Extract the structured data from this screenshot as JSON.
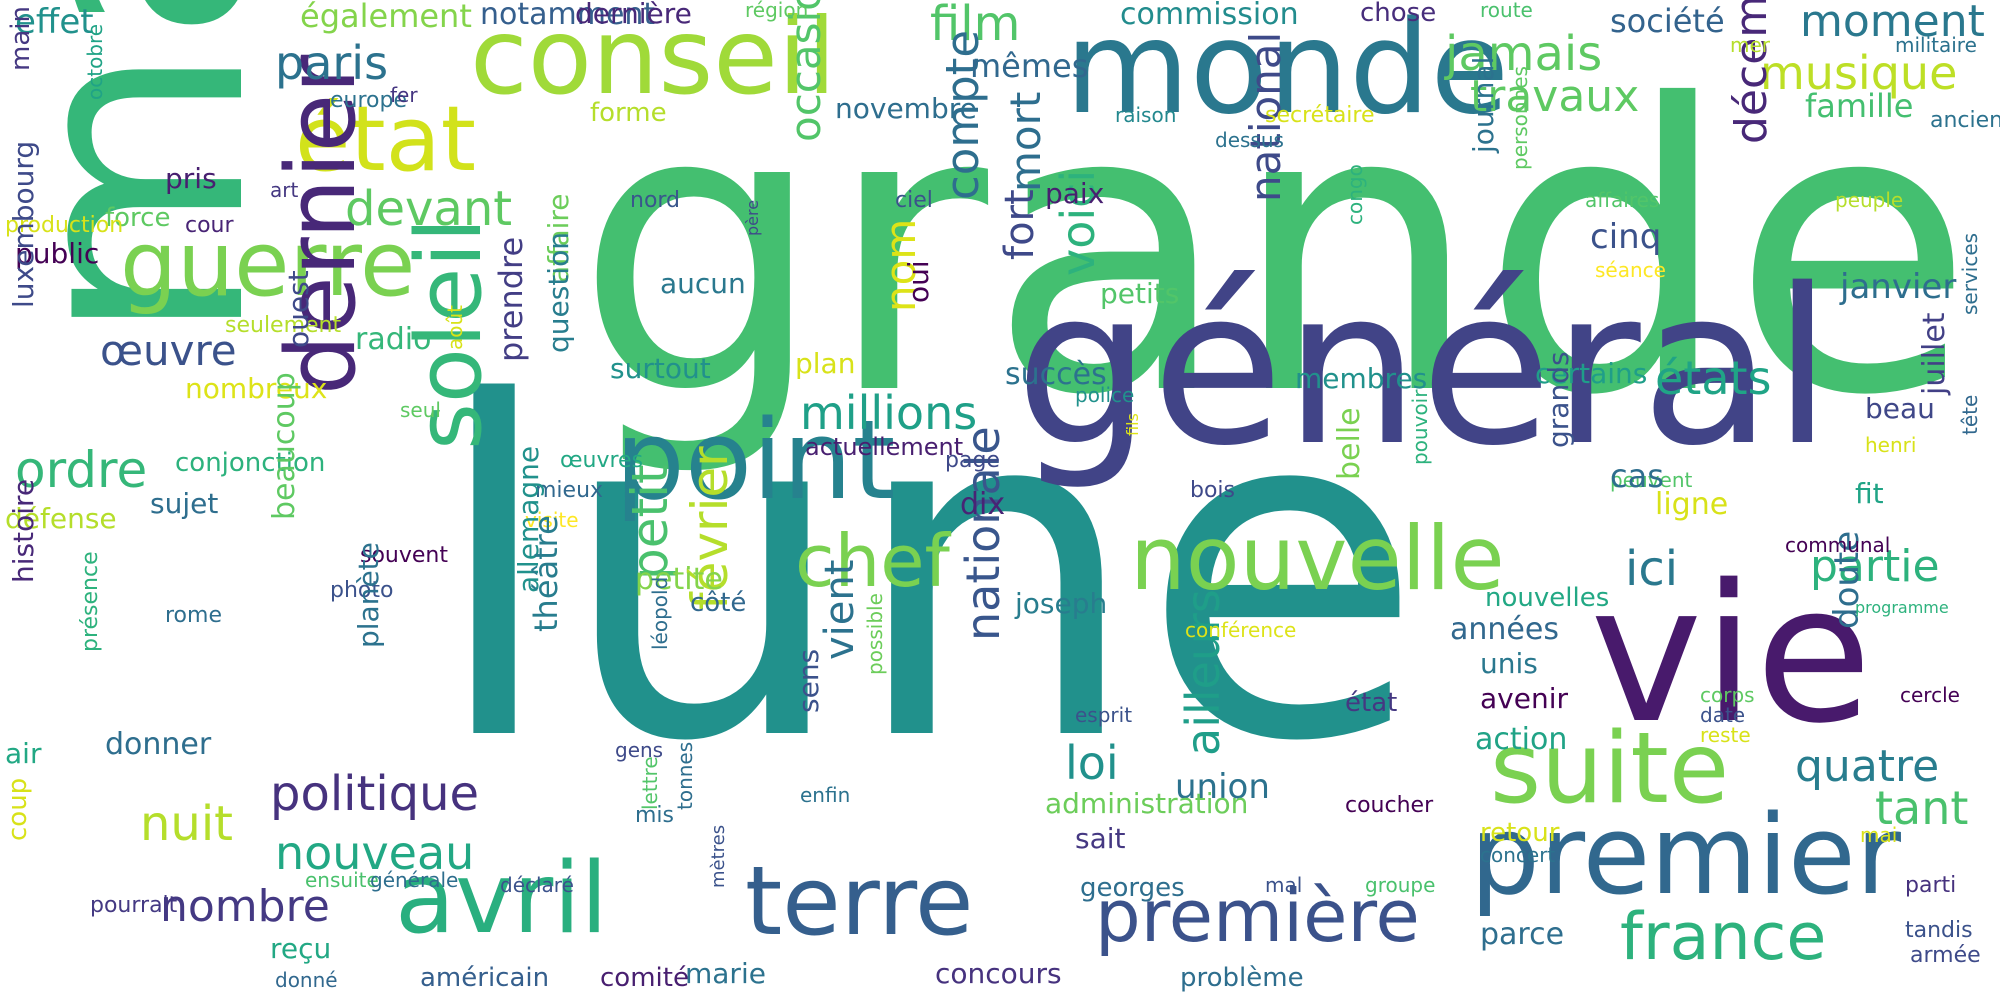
{
  "colors": {
    "background": "#ffffff",
    "palette": [
      "#440154",
      "#3b528b",
      "#21918c",
      "#35b779",
      "#90d743",
      "#fde725"
    ]
  },
  "words": [
    {
      "text": "grande",
      "color": "#44bf70"
    },
    {
      "text": "lune",
      "color": "#21918c"
    },
    {
      "text": "mars",
      "color": "#35b779"
    },
    {
      "text": "général",
      "color": "#414487"
    },
    {
      "text": "vie",
      "color": "#481a6c"
    },
    {
      "text": "monde",
      "color": "#2a788e"
    },
    {
      "text": "conseil",
      "color": "#a0da39"
    },
    {
      "text": "premier",
      "color": "#31688e"
    },
    {
      "text": "point",
      "color": "#26828e"
    },
    {
      "text": "suite",
      "color": "#7ad151"
    },
    {
      "text": "terre",
      "color": "#355f8d"
    },
    {
      "text": "nouvelle",
      "color": "#7ad151"
    },
    {
      "text": "guerre",
      "color": "#7ad151"
    },
    {
      "text": "état",
      "color": "#d2e21b"
    },
    {
      "text": "avril",
      "color": "#29af7f"
    },
    {
      "text": "dernier",
      "color": "#482878"
    },
    {
      "text": "soleil",
      "color": "#35b779"
    },
    {
      "text": "france",
      "color": "#2db27d"
    },
    {
      "text": "première",
      "color": "#3b528b"
    },
    {
      "text": "chef",
      "color": "#7ad151"
    },
    {
      "text": "politique",
      "color": "#46327e"
    },
    {
      "text": "ordre",
      "color": "#35b779"
    },
    {
      "text": "nouveau",
      "color": "#22a884"
    },
    {
      "text": "paris",
      "color": "#2c728e"
    },
    {
      "text": "devant",
      "color": "#5ec962"
    },
    {
      "text": "millions",
      "color": "#1fa088"
    },
    {
      "text": "jamais",
      "color": "#5ec962"
    },
    {
      "text": "travaux",
      "color": "#5ec962"
    },
    {
      "text": "film",
      "color": "#52c569"
    },
    {
      "text": "moment",
      "color": "#2a788e"
    },
    {
      "text": "musique",
      "color": "#bddf26"
    },
    {
      "text": "société",
      "color": "#33638d"
    },
    {
      "text": "famille",
      "color": "#44bf70"
    },
    {
      "text": "décembre",
      "color": "#482878"
    },
    {
      "text": "février",
      "color": "#b5de2b"
    },
    {
      "text": "petit",
      "color": "#4ac16d"
    },
    {
      "text": "occasion",
      "color": "#52c569"
    },
    {
      "text": "compte",
      "color": "#2e6e8e"
    },
    {
      "text": "mort",
      "color": "#2e6e8e"
    },
    {
      "text": "national",
      "color": "#3e4a89"
    },
    {
      "text": "nationale",
      "color": "#39568c"
    },
    {
      "text": "voici",
      "color": "#2db27d"
    },
    {
      "text": "états",
      "color": "#20a486"
    },
    {
      "text": "ailleurs",
      "color": "#1f9e89"
    },
    {
      "text": "nombre",
      "color": "#443983"
    },
    {
      "text": "œuvre",
      "color": "#3b528b"
    },
    {
      "text": "nuit",
      "color": "#b5de2b"
    },
    {
      "text": "ici",
      "color": "#2a788e"
    },
    {
      "text": "partie",
      "color": "#2db27d"
    },
    {
      "text": "quatre",
      "color": "#287d8e"
    },
    {
      "text": "tant",
      "color": "#4ac16d"
    },
    {
      "text": "loi",
      "color": "#21918c"
    },
    {
      "text": "union",
      "color": "#2c728e"
    },
    {
      "text": "vient",
      "color": "#2c728e"
    },
    {
      "text": "nom",
      "color": "#dde318"
    },
    {
      "text": "fort",
      "color": "#3e4989"
    },
    {
      "text": "cinq",
      "color": "#3b528b"
    },
    {
      "text": "janvier",
      "color": "#2e6e8e"
    },
    {
      "text": "juillet",
      "color": "#424086"
    },
    {
      "text": "beau",
      "color": "#3f4788"
    },
    {
      "text": "doute",
      "color": "#2e6e8e"
    },
    {
      "text": "effet",
      "color": "#21918c"
    },
    {
      "text": "également",
      "color": "#84d44b"
    },
    {
      "text": "notamment",
      "color": "#355f8d"
    },
    {
      "text": "dernière",
      "color": "#482878"
    },
    {
      "text": "région",
      "color": "#5ec962"
    },
    {
      "text": "commission",
      "color": "#228c8d"
    },
    {
      "text": "chose",
      "color": "#472d7b"
    },
    {
      "text": "route",
      "color": "#4ac16d"
    },
    {
      "text": "mer",
      "color": "#b5de2b"
    },
    {
      "text": "militaire",
      "color": "#2c728e"
    },
    {
      "text": "ancien",
      "color": "#2c728e"
    },
    {
      "text": "main",
      "color": "#453882"
    },
    {
      "text": "octobre",
      "color": "#20a386"
    },
    {
      "text": "europe",
      "color": "#2c728e"
    },
    {
      "text": "fer",
      "color": "#453581"
    },
    {
      "text": "forme",
      "color": "#b5de2b"
    },
    {
      "text": "novembre",
      "color": "#2e6e8e"
    },
    {
      "text": "raison",
      "color": "#23888e"
    },
    {
      "text": "secrétaire",
      "color": "#d8e219"
    },
    {
      "text": "dessus",
      "color": "#2c728e"
    },
    {
      "text": "mêmes",
      "color": "#31688e"
    },
    {
      "text": "pris",
      "color": "#481f70"
    },
    {
      "text": "art",
      "color": "#453882"
    },
    {
      "text": "force",
      "color": "#5ec962"
    },
    {
      "text": "cour",
      "color": "#482475"
    },
    {
      "text": "production",
      "color": "#d8e219"
    },
    {
      "text": "public",
      "color": "#440154"
    },
    {
      "text": "nord",
      "color": "#39568c"
    },
    {
      "text": "ciel",
      "color": "#3b528b"
    },
    {
      "text": "père",
      "color": "#3e4a89"
    },
    {
      "text": "paix",
      "color": "#481f70"
    },
    {
      "text": "journal",
      "color": "#2c728e"
    },
    {
      "text": "personnes",
      "color": "#5ec962"
    },
    {
      "text": "affaires",
      "color": "#52c569"
    },
    {
      "text": "peuple",
      "color": "#b5de2b"
    },
    {
      "text": "séance",
      "color": "#fde725"
    },
    {
      "text": "congo",
      "color": "#2db27d"
    },
    {
      "text": "luxembourg",
      "color": "#3e4a89"
    },
    {
      "text": "seulement",
      "color": "#b5de2b"
    },
    {
      "text": "radio",
      "color": "#35b779"
    },
    {
      "text": "août",
      "color": "#d8e219"
    },
    {
      "text": "aucun",
      "color": "#2a788e"
    },
    {
      "text": "petits",
      "color": "#52c569"
    },
    {
      "text": "oui",
      "color": "#440154"
    },
    {
      "text": "surtout",
      "color": "#21918c"
    },
    {
      "text": "plan",
      "color": "#d8e219"
    },
    {
      "text": "succès",
      "color": "#2c728e"
    },
    {
      "text": "membres",
      "color": "#21918c"
    },
    {
      "text": "certains",
      "color": "#1f9e89"
    },
    {
      "text": "police",
      "color": "#21918c"
    },
    {
      "text": "affaire",
      "color": "#6ccd5a"
    },
    {
      "text": "nombreux",
      "color": "#dde318"
    },
    {
      "text": "seul",
      "color": "#5ec962"
    },
    {
      "text": "ouest",
      "color": "#3e4989"
    },
    {
      "text": "prendre",
      "color": "#433e85"
    },
    {
      "text": "question",
      "color": "#287d8e"
    },
    {
      "text": "services",
      "color": "#2e6e8e"
    },
    {
      "text": "conjonction",
      "color": "#2db27d"
    },
    {
      "text": "sujet",
      "color": "#2e6e8e"
    },
    {
      "text": "œuvres",
      "color": "#22a884"
    },
    {
      "text": "actuellement",
      "color": "#481f70"
    },
    {
      "text": "fils",
      "color": "#dde318"
    },
    {
      "text": "page",
      "color": "#3e4989"
    },
    {
      "text": "bois",
      "color": "#3e4989"
    },
    {
      "text": "pouvoir",
      "color": "#2db27d"
    },
    {
      "text": "peuvent",
      "color": "#52c569"
    },
    {
      "text": "henri",
      "color": "#d8e219"
    },
    {
      "text": "tête",
      "color": "#31688e"
    },
    {
      "text": "fit",
      "color": "#20a486"
    },
    {
      "text": "cas",
      "color": "#2e6e8e"
    },
    {
      "text": "défense",
      "color": "#b5de2b"
    },
    {
      "text": "mieux",
      "color": "#31688e"
    },
    {
      "text": "visite",
      "color": "#fde725"
    },
    {
      "text": "dix",
      "color": "#482475"
    },
    {
      "text": "grands",
      "color": "#3b528b"
    },
    {
      "text": "ligne",
      "color": "#d8e219"
    },
    {
      "text": "belle",
      "color": "#7ad151"
    },
    {
      "text": "souvent",
      "color": "#440154"
    },
    {
      "text": "communal",
      "color": "#440154"
    },
    {
      "text": "histoire",
      "color": "#482878"
    },
    {
      "text": "photo",
      "color": "#3b528b"
    },
    {
      "text": "beaucoup",
      "color": "#5ec962"
    },
    {
      "text": "petite",
      "color": "#84d44b"
    },
    {
      "text": "allemagne",
      "color": "#21918c"
    },
    {
      "text": "théâtre",
      "color": "#287d8e"
    },
    {
      "text": "planète",
      "color": "#2c728e"
    },
    {
      "text": "côté",
      "color": "#31688e"
    },
    {
      "text": "joseph",
      "color": "#287d8e"
    },
    {
      "text": "années",
      "color": "#31688e"
    },
    {
      "text": "nouvelles",
      "color": "#22a884"
    },
    {
      "text": "programme",
      "color": "#2db27d"
    },
    {
      "text": "rome",
      "color": "#2e6e8e"
    },
    {
      "text": "présence",
      "color": "#2db27d"
    },
    {
      "text": "léopold",
      "color": "#2e6e8e"
    },
    {
      "text": "possible",
      "color": "#6ccd5a"
    },
    {
      "text": "sens",
      "color": "#3b528b"
    },
    {
      "text": "conférence",
      "color": "#dde318"
    },
    {
      "text": "unis",
      "color": "#2a788e"
    },
    {
      "text": "état",
      "color": "#453882"
    },
    {
      "text": "date",
      "color": "#3b528b"
    },
    {
      "text": "esprit",
      "color": "#3b528b"
    },
    {
      "text": "corps",
      "color": "#5ec962"
    },
    {
      "text": "cercle",
      "color": "#440154"
    },
    {
      "text": "avenir",
      "color": "#440154"
    },
    {
      "text": "action",
      "color": "#20a386"
    },
    {
      "text": "air",
      "color": "#22a884"
    },
    {
      "text": "donner",
      "color": "#2e6e8e"
    },
    {
      "text": "gens",
      "color": "#3e4a89"
    },
    {
      "text": "reste",
      "color": "#d8e219"
    },
    {
      "text": "lettre",
      "color": "#52c569"
    },
    {
      "text": "tonnes",
      "color": "#2e6e8e"
    },
    {
      "text": "enfin",
      "color": "#2c728e"
    },
    {
      "text": "administration",
      "color": "#6ccd5a"
    },
    {
      "text": "retour",
      "color": "#d8e219"
    },
    {
      "text": "coucher",
      "color": "#440154"
    },
    {
      "text": "concert",
      "color": "#2c728e"
    },
    {
      "text": "mai",
      "color": "#d8e219"
    },
    {
      "text": "coup",
      "color": "#d8e219"
    },
    {
      "text": "mis",
      "color": "#2e6e8e"
    },
    {
      "text": "sait",
      "color": "#453882"
    },
    {
      "text": "pourrait",
      "color": "#443983"
    },
    {
      "text": "ensuite",
      "color": "#4ac16d"
    },
    {
      "text": "générale",
      "color": "#2e6e8e"
    },
    {
      "text": "déclaré",
      "color": "#3b528b"
    },
    {
      "text": "mètres",
      "color": "#3b528b"
    },
    {
      "text": "georges",
      "color": "#2e6e8e"
    },
    {
      "text": "mal",
      "color": "#3b528b"
    },
    {
      "text": "groupe",
      "color": "#4ac16d"
    },
    {
      "text": "parti",
      "color": "#46327e"
    },
    {
      "text": "reçu",
      "color": "#22a884"
    },
    {
      "text": "parce",
      "color": "#2e6e8e"
    },
    {
      "text": "tandis",
      "color": "#3b528b"
    },
    {
      "text": "armée",
      "color": "#3e4a89"
    },
    {
      "text": "donné",
      "color": "#31688e"
    },
    {
      "text": "américain",
      "color": "#355f8d"
    },
    {
      "text": "comité",
      "color": "#481f70"
    },
    {
      "text": "marie",
      "color": "#2c728e"
    },
    {
      "text": "concours",
      "color": "#46327e"
    },
    {
      "text": "problème",
      "color": "#2e6e8e"
    }
  ]
}
